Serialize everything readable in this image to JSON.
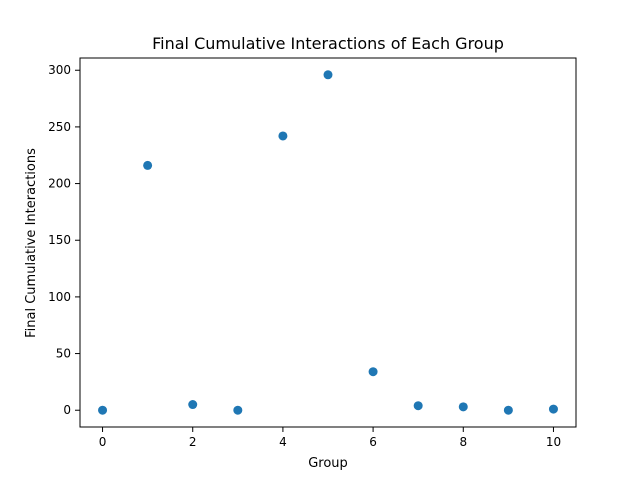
{
  "chart_data": {
    "type": "scatter",
    "title": "Final Cumulative Interactions of Each Group",
    "xlabel": "Group",
    "ylabel": "Final Cumulative Interactions",
    "x": [
      0,
      1,
      2,
      3,
      4,
      5,
      6,
      7,
      8,
      9,
      10
    ],
    "y": [
      0,
      216,
      5,
      0,
      242,
      296,
      34,
      4,
      3,
      0,
      1
    ],
    "xlim": [
      -0.5,
      10.5
    ],
    "ylim": [
      -14.8,
      310.8
    ],
    "xticks": [
      0,
      2,
      4,
      6,
      8,
      10
    ],
    "xtick_labels": [
      "0",
      "2",
      "4",
      "6",
      "8",
      "10"
    ],
    "yticks": [
      0,
      50,
      100,
      150,
      200,
      250,
      300
    ],
    "ytick_labels": [
      "0",
      "50",
      "100",
      "150",
      "200",
      "250",
      "300"
    ],
    "grid": false,
    "legend": false,
    "marker_color": "#1f77b4"
  }
}
